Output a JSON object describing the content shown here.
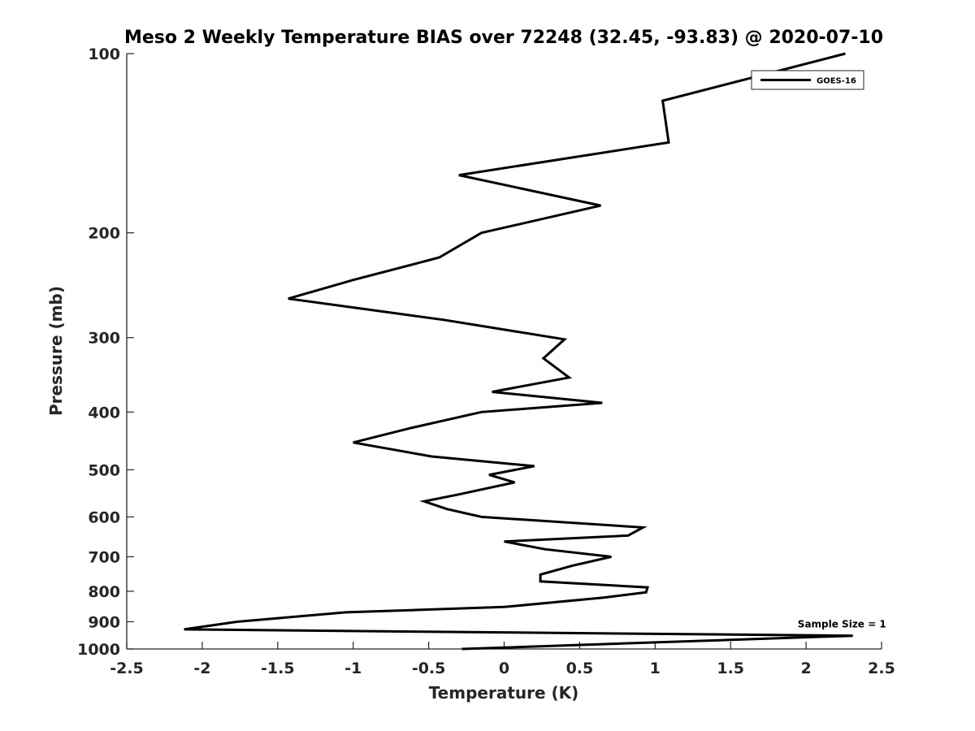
{
  "chart_data": {
    "type": "line",
    "title": "Meso 2 Weekly Temperature BIAS over 72248 (32.45, -93.83) @ 2020-07-10",
    "xlabel": "Temperature (K)",
    "ylabel": "Pressure (mb)",
    "xlim": [
      -2.5,
      2.5
    ],
    "ylim": [
      1000,
      100
    ],
    "y_scale": "log",
    "y_reversed": true,
    "x_ticks": [
      -2.5,
      -2,
      -1.5,
      -1,
      -0.5,
      0,
      0.5,
      1,
      1.5,
      2,
      2.5
    ],
    "x_tick_labels": [
      "-2.5",
      "-2",
      "-1.5",
      "-1",
      "-0.5",
      "0",
      "0.5",
      "1",
      "1.5",
      "2",
      "2.5"
    ],
    "y_ticks": [
      100,
      200,
      300,
      400,
      500,
      600,
      700,
      800,
      900,
      1000
    ],
    "y_tick_labels": [
      "100",
      "200",
      "300",
      "400",
      "500",
      "600",
      "700",
      "800",
      "900",
      "1000"
    ],
    "grid": false,
    "legend_position": "top-right",
    "series": [
      {
        "name": "GOES-16",
        "color": "#000000",
        "points": [
          {
            "x": 2.26,
            "y": 100
          },
          {
            "x": 1.05,
            "y": 120
          },
          {
            "x": 1.09,
            "y": 141
          },
          {
            "x": -0.3,
            "y": 160
          },
          {
            "x": 0.64,
            "y": 180
          },
          {
            "x": -0.15,
            "y": 200
          },
          {
            "x": -0.43,
            "y": 220
          },
          {
            "x": -1.0,
            "y": 240
          },
          {
            "x": -1.43,
            "y": 258
          },
          {
            "x": -0.4,
            "y": 280
          },
          {
            "x": 0.4,
            "y": 302
          },
          {
            "x": 0.26,
            "y": 325
          },
          {
            "x": 0.43,
            "y": 350
          },
          {
            "x": -0.08,
            "y": 370
          },
          {
            "x": 0.65,
            "y": 386
          },
          {
            "x": -0.15,
            "y": 400
          },
          {
            "x": -0.61,
            "y": 425
          },
          {
            "x": -1.0,
            "y": 450
          },
          {
            "x": -0.48,
            "y": 475
          },
          {
            "x": 0.2,
            "y": 493
          },
          {
            "x": -0.1,
            "y": 510
          },
          {
            "x": 0.07,
            "y": 525
          },
          {
            "x": -0.3,
            "y": 550
          },
          {
            "x": -0.53,
            "y": 565
          },
          {
            "x": -0.38,
            "y": 582
          },
          {
            "x": -0.15,
            "y": 600
          },
          {
            "x": 0.92,
            "y": 625
          },
          {
            "x": 0.82,
            "y": 645
          },
          {
            "x": 0.0,
            "y": 660
          },
          {
            "x": 0.27,
            "y": 680
          },
          {
            "x": 0.71,
            "y": 700
          },
          {
            "x": 0.45,
            "y": 725
          },
          {
            "x": 0.24,
            "y": 750
          },
          {
            "x": 0.24,
            "y": 770
          },
          {
            "x": 0.95,
            "y": 788
          },
          {
            "x": 0.94,
            "y": 803
          },
          {
            "x": 0.66,
            "y": 820
          },
          {
            "x": 0.0,
            "y": 850
          },
          {
            "x": -1.05,
            "y": 868
          },
          {
            "x": -1.77,
            "y": 900
          },
          {
            "x": -2.12,
            "y": 927
          },
          {
            "x": 2.31,
            "y": 950
          },
          {
            "x": 1.0,
            "y": 975
          },
          {
            "x": -0.28,
            "y": 1000
          }
        ]
      }
    ],
    "annotations": [
      {
        "text": "Sample Size = 1",
        "x": 2.2,
        "y": 920
      }
    ]
  }
}
